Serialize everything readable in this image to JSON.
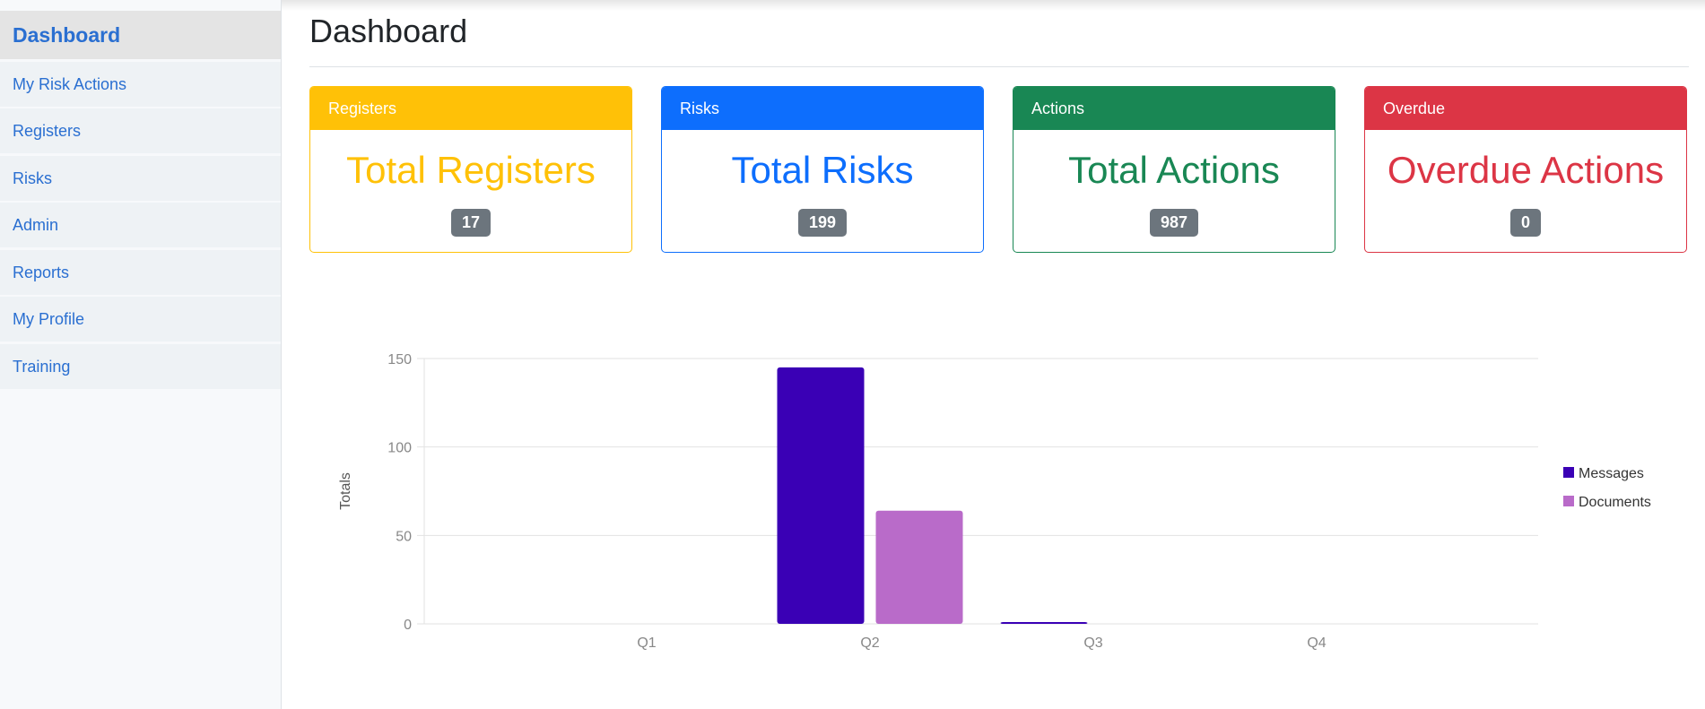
{
  "sidebar": {
    "items": [
      {
        "label": "Dashboard",
        "active": true
      },
      {
        "label": "My Risk Actions"
      },
      {
        "label": "Registers"
      },
      {
        "label": "Risks"
      },
      {
        "label": "Admin"
      },
      {
        "label": "Reports"
      },
      {
        "label": "My Profile"
      },
      {
        "label": "Training"
      }
    ]
  },
  "page": {
    "title": "Dashboard"
  },
  "cards": [
    {
      "header": "Registers",
      "title": "Total Registers",
      "count": "17",
      "color": "#ffc107"
    },
    {
      "header": "Risks",
      "title": "Total Risks",
      "count": "199",
      "color": "#0d6efd"
    },
    {
      "header": "Actions",
      "title": "Total Actions",
      "count": "987",
      "color": "#198754"
    },
    {
      "header": "Overdue",
      "title": "Overdue Actions",
      "count": "0",
      "color": "#dc3545"
    }
  ],
  "chart_data": {
    "type": "bar",
    "categories": [
      "Q1",
      "Q2",
      "Q3",
      "Q4"
    ],
    "series": [
      {
        "name": "Messages",
        "color": "#3a00b5",
        "values": [
          0,
          145,
          1,
          0
        ]
      },
      {
        "name": "Documents",
        "color": "#b96bc9",
        "values": [
          0,
          64,
          0,
          0
        ]
      }
    ],
    "ylabel": "Totals",
    "ylim": [
      0,
      150
    ],
    "yticks": [
      "0",
      "50",
      "100",
      "150"
    ],
    "grid": true,
    "legend": "right"
  }
}
